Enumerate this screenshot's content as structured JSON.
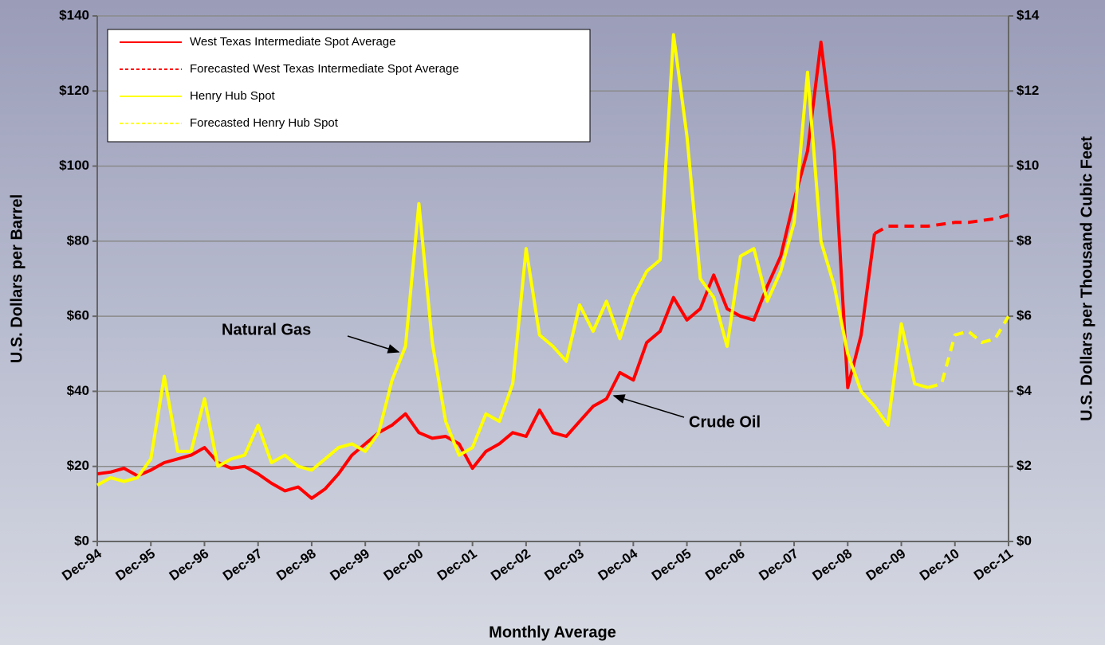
{
  "chart_data": {
    "type": "line",
    "xlabel": "Monthly Average",
    "ylabel": "U.S. Dollars per Barrel",
    "y2label": "U.S. Dollars per Thousand Cubic Feet",
    "annotations": [
      "Natural Gas",
      "Crude Oil"
    ],
    "grid": true,
    "legend": "upper left",
    "ylim": [
      0,
      140
    ],
    "yticks": [
      {
        "value": 0,
        "label": "$0"
      },
      {
        "value": 20,
        "label": "$20"
      },
      {
        "value": 40,
        "label": "$40"
      },
      {
        "value": 60,
        "label": "$60"
      },
      {
        "value": 80,
        "label": "$80"
      },
      {
        "value": 100,
        "label": "$100"
      },
      {
        "value": 120,
        "label": "$120"
      },
      {
        "value": 140,
        "label": "$140"
      }
    ],
    "y2lim": [
      0,
      14
    ],
    "y2ticks": [
      {
        "value": 0,
        "label": "$0"
      },
      {
        "value": 2,
        "label": "$2"
      },
      {
        "value": 4,
        "label": "$4"
      },
      {
        "value": 6,
        "label": "$6"
      },
      {
        "value": 8,
        "label": "$8"
      },
      {
        "value": 10,
        "label": "$10"
      },
      {
        "value": 12,
        "label": "$12"
      },
      {
        "value": 14,
        "label": "$14"
      }
    ],
    "categories": [
      "Dec-94",
      null,
      null,
      null,
      "Dec-95",
      null,
      null,
      null,
      "Dec-96",
      null,
      null,
      null,
      "Dec-97",
      null,
      null,
      null,
      "Dec-98",
      null,
      null,
      null,
      "Dec-99",
      null,
      null,
      null,
      "Dec-00",
      null,
      null,
      null,
      "Dec-01",
      null,
      null,
      null,
      "Dec-02",
      null,
      null,
      null,
      "Dec-03",
      null,
      null,
      null,
      "Dec-04",
      null,
      null,
      null,
      "Dec-05",
      null,
      null,
      null,
      "Dec-06",
      null,
      null,
      null,
      "Dec-07",
      null,
      null,
      null,
      "Dec-08",
      null,
      null,
      null,
      "Dec-09",
      null,
      null,
      null,
      "Dec-10",
      null,
      null,
      null,
      "Dec-11"
    ],
    "series": [
      {
        "name": "West Texas Intermediate Spot Average",
        "color": "#ff0000",
        "dashed": false,
        "values": [
          18,
          18.5,
          19.5,
          17.5,
          19,
          21,
          22,
          23,
          25,
          21,
          19.5,
          20,
          18,
          15.5,
          13.5,
          14.5,
          11.5,
          14,
          18,
          23,
          26,
          29,
          31,
          34,
          29,
          27.5,
          28,
          26,
          19.5,
          24,
          26,
          29,
          28,
          35,
          29,
          28,
          32,
          36,
          38,
          45,
          43,
          53,
          56,
          65,
          59,
          62,
          71,
          62,
          60,
          59,
          68,
          76,
          91,
          104,
          133,
          104,
          41,
          55,
          82,
          null,
          null,
          null,
          null,
          null,
          null,
          null,
          null,
          null,
          null
        ]
      },
      {
        "name": "Forecasted West Texas Intermediate Spot Average",
        "color": "#ff0000",
        "dashed": true,
        "values": [
          null,
          null,
          null,
          null,
          null,
          null,
          null,
          null,
          null,
          null,
          null,
          null,
          null,
          null,
          null,
          null,
          null,
          null,
          null,
          null,
          null,
          null,
          null,
          null,
          null,
          null,
          null,
          null,
          null,
          null,
          null,
          null,
          null,
          null,
          null,
          null,
          null,
          null,
          null,
          null,
          null,
          null,
          null,
          null,
          null,
          null,
          null,
          null,
          null,
          null,
          null,
          null,
          null,
          null,
          null,
          null,
          null,
          null,
          82,
          84,
          84,
          84,
          84,
          84.5,
          85,
          85,
          85.5,
          86,
          87
        ]
      },
      {
        "name": "Henry Hub Spot",
        "color": "#ffff00",
        "dashed": false,
        "axis": "y2",
        "values": [
          1.5,
          1.7,
          1.6,
          1.7,
          2.2,
          4.4,
          2.4,
          2.4,
          3.8,
          2.0,
          2.2,
          2.3,
          3.1,
          2.1,
          2.3,
          2.0,
          1.9,
          2.2,
          2.5,
          2.6,
          2.4,
          2.9,
          4.3,
          5.2,
          9.0,
          5.3,
          3.2,
          2.3,
          2.5,
          3.4,
          3.2,
          4.2,
          7.8,
          5.5,
          5.2,
          4.8,
          6.3,
          5.6,
          6.4,
          5.4,
          6.5,
          7.2,
          7.5,
          13.5,
          10.8,
          7.0,
          6.5,
          5.2,
          7.6,
          7.8,
          6.4,
          7.2,
          8.5,
          12.5,
          8.0,
          6.8,
          5.0,
          4.0,
          3.6,
          3.1,
          5.8,
          4.2,
          4.1,
          null,
          null,
          null,
          null,
          null,
          null
        ]
      },
      {
        "name": "Forecasted  Henry Hub Spot",
        "color": "#ffff00",
        "dashed": true,
        "axis": "y2",
        "values": [
          null,
          null,
          null,
          null,
          null,
          null,
          null,
          null,
          null,
          null,
          null,
          null,
          null,
          null,
          null,
          null,
          null,
          null,
          null,
          null,
          null,
          null,
          null,
          null,
          null,
          null,
          null,
          null,
          null,
          null,
          null,
          null,
          null,
          null,
          null,
          null,
          null,
          null,
          null,
          null,
          null,
          null,
          null,
          null,
          null,
          null,
          null,
          null,
          null,
          null,
          null,
          null,
          null,
          null,
          null,
          null,
          null,
          null,
          null,
          null,
          null,
          null,
          4.1,
          4.2,
          5.5,
          5.6,
          5.3,
          5.4,
          6.0
        ]
      }
    ]
  }
}
